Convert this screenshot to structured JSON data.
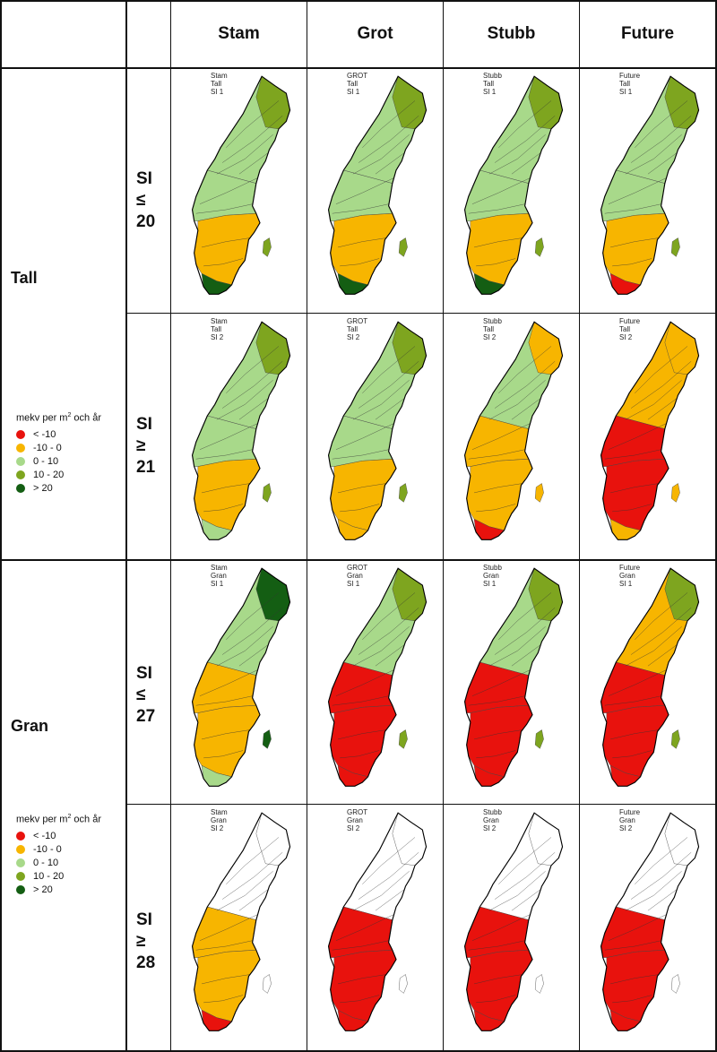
{
  "headers": [
    "Stam",
    "Grot",
    "Stubb",
    "Future"
  ],
  "species": [
    "Tall",
    "Gran"
  ],
  "si_classes": [
    [
      "SI",
      "≤",
      "20"
    ],
    [
      "SI",
      "≥",
      "21"
    ],
    [
      "SI",
      "≤",
      "27"
    ],
    [
      "SI",
      "≥",
      "28"
    ]
  ],
  "legend": {
    "title_main": "mekv per m",
    "title_sup": "2",
    "title_tail": " och år",
    "classes": [
      {
        "label": "< -10",
        "color": "#e8120d"
      },
      {
        "label": "-10 - 0",
        "color": "#f7b500"
      },
      {
        "label": "0 - 10",
        "color": "#a8d98a"
      },
      {
        "label": "10 - 20",
        "color": "#7ea51f"
      },
      {
        "label": "> 20",
        "color": "#145e13"
      }
    ]
  },
  "maps": [
    {
      "caption": [
        "Stam",
        "Tall",
        "SI 1"
      ],
      "north": "#a8d98a",
      "far": "#7ea51f",
      "mid": "#a8d98a",
      "south": "#f7b500",
      "tip": "#145e13"
    },
    {
      "caption": [
        "GROT",
        "Tall",
        "SI 1"
      ],
      "north": "#a8d98a",
      "far": "#7ea51f",
      "mid": "#a8d98a",
      "south": "#f7b500",
      "tip": "#145e13"
    },
    {
      "caption": [
        "Stubb",
        "Tall",
        "SI 1"
      ],
      "north": "#a8d98a",
      "far": "#7ea51f",
      "mid": "#a8d98a",
      "south": "#f7b500",
      "tip": "#145e13"
    },
    {
      "caption": [
        "Future",
        "Tall",
        "SI 1"
      ],
      "north": "#a8d98a",
      "far": "#7ea51f",
      "mid": "#a8d98a",
      "south": "#f7b500",
      "tip": "#e8120d"
    },
    {
      "caption": [
        "Stam",
        "Tall",
        "SI 2"
      ],
      "north": "#a8d98a",
      "far": "#7ea51f",
      "mid": "#a8d98a",
      "south": "#f7b500",
      "tip": "#a8d98a"
    },
    {
      "caption": [
        "GROT",
        "Tall",
        "SI 2"
      ],
      "north": "#a8d98a",
      "far": "#7ea51f",
      "mid": "#a8d98a",
      "south": "#f7b500",
      "tip": "#f7b500"
    },
    {
      "caption": [
        "Stubb",
        "Tall",
        "SI 2"
      ],
      "north": "#a8d98a",
      "far": "#f7b500",
      "mid": "#f7b500",
      "south": "#f7b500",
      "tip": "#e8120d"
    },
    {
      "caption": [
        "Future",
        "Tall",
        "SI 2"
      ],
      "north": "#f7b500",
      "far": "#f7b500",
      "mid": "#e8120d",
      "south": "#e8120d",
      "tip": "#f7b500"
    },
    {
      "caption": [
        "Stam",
        "Gran",
        "SI 1"
      ],
      "north": "#a8d98a",
      "far": "#145e13",
      "mid": "#f7b500",
      "south": "#f7b500",
      "tip": "#a8d98a"
    },
    {
      "caption": [
        "GROT",
        "Gran",
        "SI 1"
      ],
      "north": "#a8d98a",
      "far": "#7ea51f",
      "mid": "#e8120d",
      "south": "#e8120d",
      "tip": "#e8120d"
    },
    {
      "caption": [
        "Stubb",
        "Gran",
        "SI 1"
      ],
      "north": "#a8d98a",
      "far": "#7ea51f",
      "mid": "#e8120d",
      "south": "#e8120d",
      "tip": "#e8120d"
    },
    {
      "caption": [
        "Future",
        "Gran",
        "SI 1"
      ],
      "north": "#f7b500",
      "far": "#7ea51f",
      "mid": "#e8120d",
      "south": "#e8120d",
      "tip": "#e8120d"
    },
    {
      "caption": [
        "Stam",
        "Gran",
        "SI 2"
      ],
      "north": "#ffffff",
      "far": "#ffffff",
      "mid": "#f7b500",
      "south": "#f7b500",
      "tip": "#e8120d"
    },
    {
      "caption": [
        "GROT",
        "Gran",
        "SI 2"
      ],
      "north": "#ffffff",
      "far": "#ffffff",
      "mid": "#e8120d",
      "south": "#e8120d",
      "tip": "#e8120d"
    },
    {
      "caption": [
        "Stubb",
        "Gran",
        "SI 2"
      ],
      "north": "#ffffff",
      "far": "#ffffff",
      "mid": "#e8120d",
      "south": "#e8120d",
      "tip": "#e8120d"
    },
    {
      "caption": [
        "Future",
        "Gran",
        "SI 2"
      ],
      "north": "#ffffff",
      "far": "#ffffff",
      "mid": "#e8120d",
      "south": "#e8120d",
      "tip": "#e8120d"
    }
  ]
}
